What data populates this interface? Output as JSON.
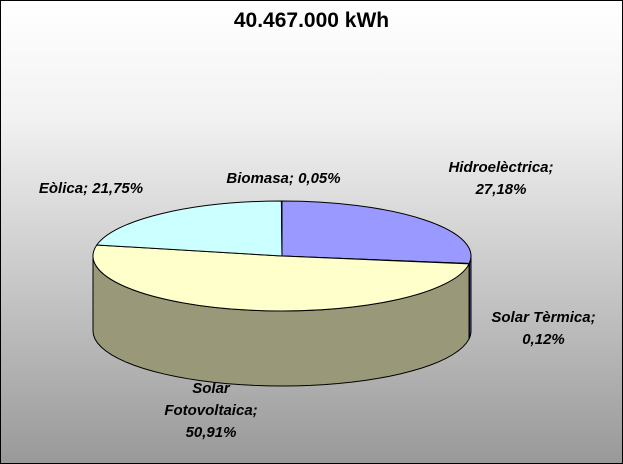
{
  "chart_data": {
    "type": "pie3d",
    "title": "40.467.000 kWh",
    "categories": [
      "Hidroelèctrica",
      "Solar Tèrmica",
      "Solar Fotovoltaica",
      "Eòlica",
      "Biomasa"
    ],
    "values": [
      27.18,
      0.12,
      50.91,
      21.75,
      0.05
    ],
    "value_labels": [
      "27,18%",
      "0,12%",
      "50,91%",
      "21,75%",
      "0,05%"
    ],
    "label_separator": ";",
    "colors": [
      "#9999ff",
      "#993366",
      "#ffffcc",
      "#ccffff",
      "#660066"
    ]
  }
}
